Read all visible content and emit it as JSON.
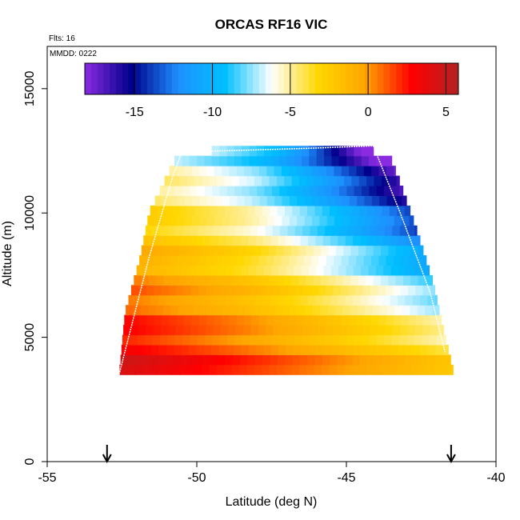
{
  "chart_data": {
    "type": "heatmap",
    "title": "ORCAS RF16 VIC",
    "annotations": [
      "Flts: 16",
      "MMDD: 0222"
    ],
    "xlabel": "Latitude (deg N)",
    "ylabel": "Altitude (m)",
    "xlim": [
      -55,
      -40
    ],
    "ylim": [
      0,
      16700
    ],
    "x_ticks": [
      -55,
      -50,
      -45,
      -40
    ],
    "y_ticks": [
      0,
      5000,
      10000,
      15000
    ],
    "x_tick_labels": [
      "-55",
      "-50",
      "-45",
      "-40"
    ],
    "y_tick_labels": [
      "0",
      "5000",
      "10000",
      "15000"
    ],
    "grid": false,
    "colorbar": {
      "placement": "top inside plot",
      "range": [
        -18.2,
        5.8
      ],
      "ticks": [
        -15,
        -10,
        -5,
        0,
        5
      ],
      "tick_labels": [
        "-15",
        "-10",
        "-5",
        "0",
        "5"
      ],
      "colors": [
        "#8A2BE2",
        "#00008B",
        "#1E90FF",
        "#00BFFF",
        "#FFFFFF",
        "#FFD700",
        "#FFA500",
        "#FF0000",
        "#B22222"
      ]
    },
    "field": {
      "variable": "VIC",
      "altitude_bands_m": [
        3500,
        12700
      ],
      "lat_range": [
        -52.6,
        -41.4
      ],
      "approx_values": "warm (+2 to +5) at low altitude on the southern side, decreasing to about -16 near 12000 m on the northern side"
    },
    "flight_track": {
      "lat": [
        -52.6,
        -51.6,
        -50.8,
        -50.5,
        -46.3,
        -44.1,
        -43.2,
        -42.2,
        -41.7
      ],
      "alt": [
        3500,
        8200,
        11500,
        12450,
        12600,
        12700,
        10000,
        6800,
        4400
      ]
    },
    "markers": {
      "type": "arrow",
      "lat": [
        -53.0,
        -41.5
      ]
    }
  }
}
